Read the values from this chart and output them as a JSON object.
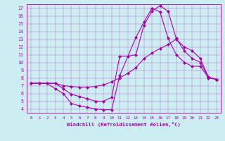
{
  "xlabel": "Windchill (Refroidissement éolien,°C)",
  "background_color": "#cceef2",
  "line_color": "#aa00aa",
  "xlim": [
    -0.5,
    23.5
  ],
  "ylim": [
    3.5,
    17.5
  ],
  "xticks": [
    0,
    1,
    2,
    3,
    4,
    5,
    6,
    7,
    8,
    9,
    10,
    11,
    12,
    13,
    14,
    15,
    16,
    17,
    18,
    19,
    20,
    21,
    22,
    23
  ],
  "yticks": [
    4,
    5,
    6,
    7,
    8,
    9,
    10,
    11,
    12,
    13,
    14,
    15,
    16,
    17
  ],
  "line1_x": [
    0,
    1,
    2,
    3,
    4,
    5,
    6,
    7,
    8,
    9,
    10,
    11,
    13,
    14,
    15,
    16,
    17,
    18,
    19,
    20,
    21,
    22,
    23
  ],
  "line1_y": [
    7.3,
    7.3,
    7.3,
    6.6,
    6.0,
    4.7,
    4.4,
    4.2,
    4.0,
    3.9,
    3.9,
    8.3,
    13.2,
    15.2,
    17.0,
    16.5,
    13.1,
    11.0,
    10.0,
    9.5,
    9.5,
    8.0,
    7.8
  ],
  "line2_x": [
    0,
    1,
    2,
    3,
    4,
    5,
    6,
    7,
    8,
    9,
    10,
    11,
    12,
    13,
    14,
    15,
    16,
    17,
    18,
    19,
    20,
    21,
    22,
    23
  ],
  "line2_y": [
    7.3,
    7.3,
    7.3,
    7.3,
    6.6,
    5.9,
    5.6,
    5.3,
    5.0,
    5.0,
    5.5,
    10.8,
    10.8,
    11.0,
    14.8,
    16.6,
    17.3,
    16.6,
    13.1,
    11.5,
    10.5,
    10.0,
    8.1,
    7.8
  ],
  "line3_x": [
    0,
    1,
    2,
    3,
    4,
    5,
    6,
    7,
    8,
    9,
    10,
    11,
    12,
    13,
    14,
    15,
    16,
    17,
    18,
    19,
    20,
    21,
    22,
    23
  ],
  "line3_y": [
    7.3,
    7.3,
    7.3,
    7.3,
    7.0,
    6.9,
    6.8,
    6.8,
    6.9,
    7.1,
    7.5,
    8.0,
    8.6,
    9.3,
    10.5,
    11.2,
    11.8,
    12.3,
    13.0,
    12.0,
    11.5,
    10.5,
    8.1,
    7.8
  ]
}
